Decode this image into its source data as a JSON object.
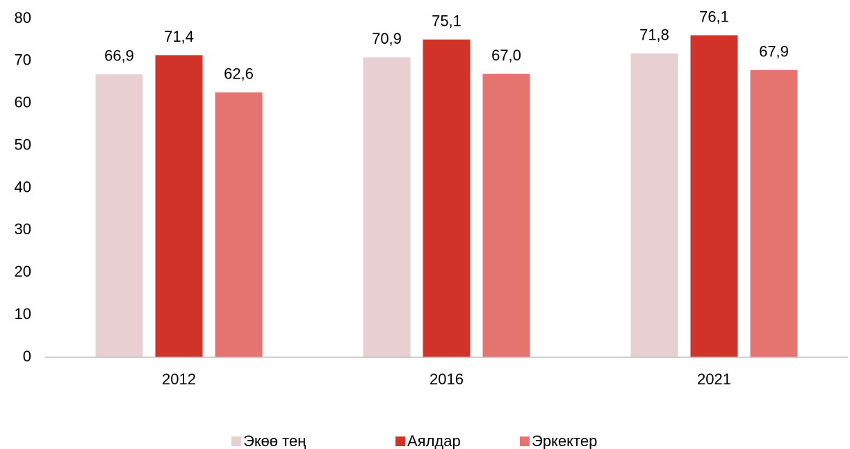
{
  "chart_data": {
    "type": "bar",
    "categories": [
      "2012",
      "2016",
      "2021"
    ],
    "series": [
      {
        "name": "Экөө тең",
        "color": "#e8d0d2",
        "values": [
          66.9,
          70.9,
          71.8
        ],
        "value_labels": [
          "66,9",
          "70,9",
          "71,8"
        ]
      },
      {
        "name": "Аялдар",
        "color": "#d13328",
        "values": [
          71.4,
          75.1,
          76.1
        ],
        "value_labels": [
          "71,4",
          "75,1",
          "76,1"
        ]
      },
      {
        "name": "Эркектер",
        "color": "#e57470",
        "values": [
          62.6,
          67.0,
          67.9
        ],
        "value_labels": [
          "62,6",
          "67,0",
          "67,9"
        ]
      }
    ],
    "ylim": [
      0,
      80
    ],
    "yticks": [
      0,
      10,
      20,
      30,
      40,
      50,
      60,
      70,
      80
    ],
    "grid": false,
    "legend": "bottom"
  }
}
